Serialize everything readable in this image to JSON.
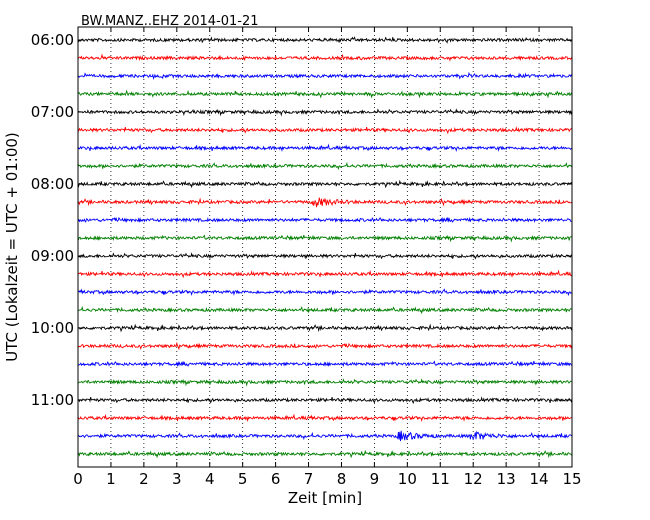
{
  "chart_data": {
    "type": "line",
    "title": "BW.MANZ..EHZ 2014-01-21",
    "xlabel": "Zeit  [min]",
    "ylabel": "UTC (Lokalzeit = UTC + 01:00)",
    "xlim": [
      0,
      15
    ],
    "x_ticks": [
      0,
      1,
      2,
      3,
      4,
      5,
      6,
      7,
      8,
      9,
      10,
      11,
      12,
      13,
      14,
      15
    ],
    "x_tick_labels": [
      "0",
      "1",
      "2",
      "3",
      "4",
      "5",
      "6",
      "7",
      "8",
      "9",
      "10",
      "11",
      "12",
      "13",
      "14",
      "15"
    ],
    "y_tick_labels": [
      "06:00",
      "07:00",
      "08:00",
      "09:00",
      "10:00",
      "11:00"
    ],
    "trace_interval_minutes": 15,
    "grid": "vertical dotted at each minute",
    "trace_color_cycle": [
      "#000000",
      "#ff0000",
      "#0000ff",
      "#008000"
    ],
    "traces": [
      {
        "start": "06:00",
        "color": "#000000"
      },
      {
        "start": "06:15",
        "color": "#ff0000"
      },
      {
        "start": "06:30",
        "color": "#0000ff"
      },
      {
        "start": "06:45",
        "color": "#008000"
      },
      {
        "start": "07:00",
        "color": "#000000"
      },
      {
        "start": "07:15",
        "color": "#ff0000"
      },
      {
        "start": "07:30",
        "color": "#0000ff"
      },
      {
        "start": "07:45",
        "color": "#008000"
      },
      {
        "start": "08:00",
        "color": "#000000"
      },
      {
        "start": "08:15",
        "color": "#ff0000",
        "events_min": [
          7.25
        ]
      },
      {
        "start": "08:30",
        "color": "#0000ff"
      },
      {
        "start": "08:45",
        "color": "#008000"
      },
      {
        "start": "09:00",
        "color": "#000000"
      },
      {
        "start": "09:15",
        "color": "#ff0000"
      },
      {
        "start": "09:30",
        "color": "#0000ff"
      },
      {
        "start": "09:45",
        "color": "#008000"
      },
      {
        "start": "10:00",
        "color": "#000000"
      },
      {
        "start": "10:15",
        "color": "#ff0000"
      },
      {
        "start": "10:30",
        "color": "#0000ff"
      },
      {
        "start": "10:45",
        "color": "#008000"
      },
      {
        "start": "11:00",
        "color": "#000000"
      },
      {
        "start": "11:15",
        "color": "#ff0000"
      },
      {
        "start": "11:30",
        "color": "#0000ff",
        "events_min": [
          9.8,
          12.0
        ]
      },
      {
        "start": "11:45",
        "color": "#008000"
      }
    ]
  }
}
